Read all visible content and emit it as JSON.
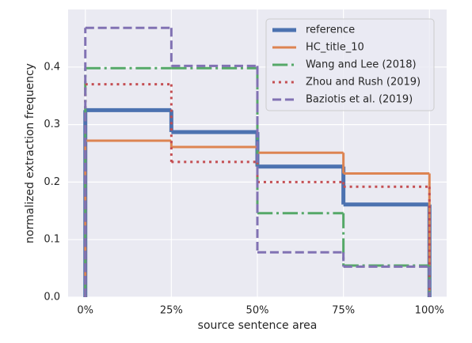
{
  "chart_data": {
    "type": "histogram",
    "xlabel": "source sentence area",
    "ylabel": "normalized extraction frequency",
    "bins": [
      0,
      25,
      50,
      75,
      100
    ],
    "series": [
      {
        "name": "reference",
        "color": "#4c72b0",
        "style": "solid",
        "width": 5,
        "values": [
          0.325,
          0.287,
          0.227,
          0.161
        ]
      },
      {
        "name": "HC_title_10",
        "color": "#dd8452",
        "style": "solid",
        "width": 3,
        "values": [
          0.272,
          0.261,
          0.251,
          0.215
        ]
      },
      {
        "name": "Wang and Lee (2018)",
        "color": "#55a868",
        "style": "dashdot",
        "width": 3,
        "values": [
          0.398,
          0.398,
          0.146,
          0.055
        ]
      },
      {
        "name": "Zhou and Rush (2019)",
        "color": "#c44e52",
        "style": "dotted",
        "width": 3,
        "values": [
          0.37,
          0.235,
          0.2,
          0.192
        ]
      },
      {
        "name": "Baziotis et al. (2019)",
        "color": "#8172b3",
        "style": "dashed",
        "width": 3,
        "values": [
          0.468,
          0.402,
          0.078,
          0.053
        ]
      }
    ],
    "xlim": [
      -5,
      105
    ],
    "xticks": [
      {
        "value": 0,
        "label": "0%"
      },
      {
        "value": 25,
        "label": "25%"
      },
      {
        "value": 50,
        "label": "50%"
      },
      {
        "value": 75,
        "label": "75%"
      },
      {
        "value": 100,
        "label": "100%"
      }
    ],
    "ylim": [
      0,
      0.5
    ],
    "yticks": [
      {
        "value": 0,
        "label": "0.0"
      },
      0.1,
      0.2,
      0.3,
      0.4
    ],
    "grid": true,
    "legend": "upper right"
  }
}
